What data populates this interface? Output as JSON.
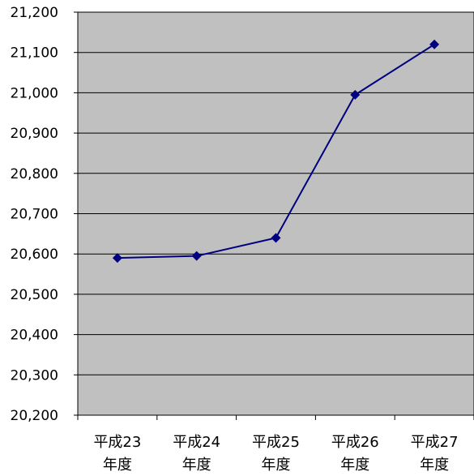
{
  "chart_data": {
    "type": "line",
    "title": "",
    "xlabel": "",
    "ylabel": "",
    "categories": [
      [
        "平成23",
        "年度"
      ],
      [
        "平成24",
        "年度"
      ],
      [
        "平成25",
        "年度"
      ],
      [
        "平成26",
        "年度"
      ],
      [
        "平成27",
        "年度"
      ]
    ],
    "series": [
      {
        "values": [
          20590,
          20595,
          20640,
          20995,
          21120
        ]
      }
    ],
    "ylim": [
      20200,
      21200
    ],
    "yticks": [
      20200,
      20300,
      20400,
      20500,
      20600,
      20700,
      20800,
      20900,
      21000,
      21100,
      21200
    ],
    "ytick_labels": [
      "20,200",
      "20,300",
      "20,400",
      "20,500",
      "20,600",
      "20,700",
      "20,800",
      "20,900",
      "21,000",
      "21,100",
      "21,200"
    ],
    "grid": true,
    "legend": "none",
    "colors": {
      "plot_background": "#c0c0c0",
      "gridline": "#000000",
      "series_line": "#000080",
      "marker": "#000080"
    },
    "marker": "diamond"
  }
}
